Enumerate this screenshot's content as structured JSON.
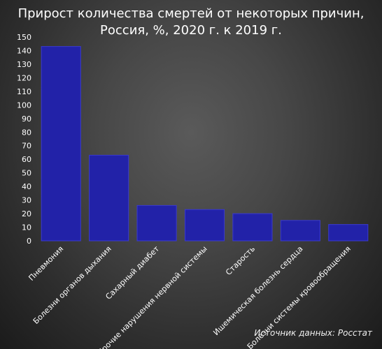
{
  "chart_data": {
    "type": "bar",
    "title_line1": "Прирост количества смертей от некоторых причин,",
    "title_line2": "Россия, %, 2020 г. к 2019 г.",
    "categories": [
      "Пневмония",
      "Болезни органов дыхания",
      "Сахарный диабет",
      "Прочие нарушения нервной системы",
      "Старость",
      "Ишемическая болезнь сердца",
      "Болезни системы кровообращения"
    ],
    "values": [
      143,
      63,
      26,
      23,
      20,
      15,
      12
    ],
    "ylim": [
      0,
      150
    ],
    "yticks": [
      0,
      10,
      20,
      30,
      40,
      50,
      60,
      70,
      80,
      90,
      100,
      110,
      120,
      130,
      140,
      150
    ],
    "grid": false,
    "legend": "none",
    "bar_color": "#2222a8",
    "bar_edge_color": "#3a3ad0",
    "source": "Источник данных: Росстат"
  }
}
